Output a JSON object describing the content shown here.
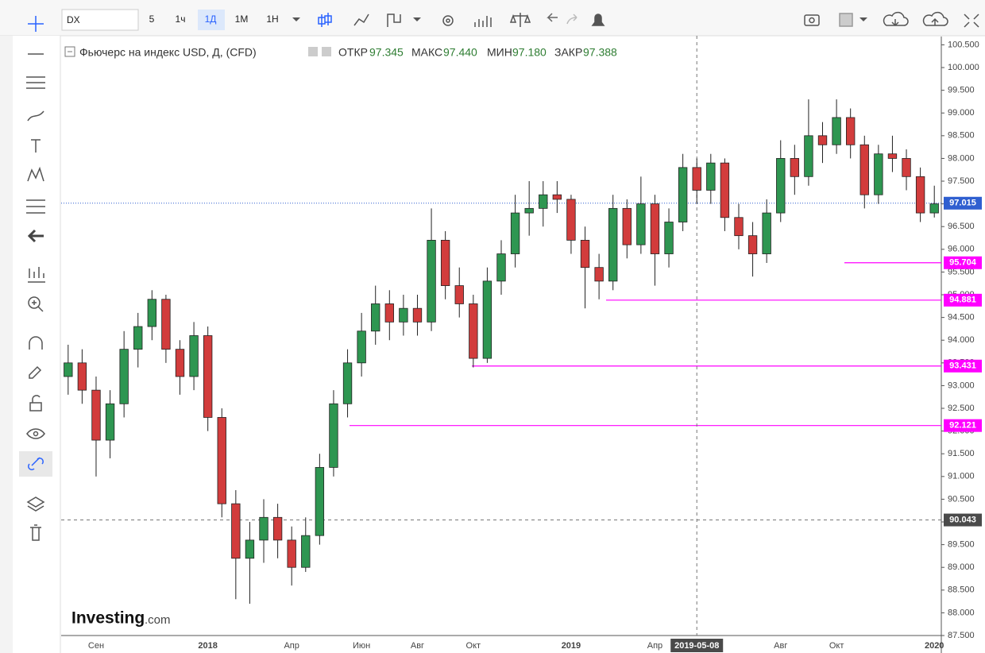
{
  "toolbar": {
    "symbol": "DX",
    "intervals": [
      "5",
      "1ч",
      "1Д",
      "1М",
      "1Н"
    ]
  },
  "legend": {
    "title": "Фьючерс на индекс USD, Д, (CFD)",
    "fields": [
      {
        "label": "ОТКР",
        "value": "97.345"
      },
      {
        "label": "МАКС",
        "value": "97.440"
      },
      {
        "label": "МИН",
        "value": "97.180"
      },
      {
        "label": "ЗАКР",
        "value": "97.388"
      }
    ]
  },
  "logo": {
    "name": "Investing",
    "suffix": ".com"
  },
  "chart_data": {
    "type": "candlestick",
    "categories": [
      null,
      null,
      "Сен",
      null,
      null,
      null,
      null,
      null,
      null,
      null,
      "2018",
      null,
      null,
      null,
      null,
      null,
      "Апр",
      null,
      null,
      null,
      null,
      "Июн",
      null,
      null,
      null,
      "Авг",
      null,
      null,
      null,
      "Окт",
      null,
      null,
      null,
      null,
      null,
      null,
      "2019",
      null,
      null,
      null,
      null,
      null,
      "Апр",
      null,
      null,
      null,
      null,
      null,
      null,
      null,
      null,
      "Авг",
      null,
      null,
      null,
      "Окт",
      null,
      null,
      null,
      null,
      null,
      null,
      "2020"
    ],
    "open": [
      93.2,
      93.5,
      92.9,
      91.8,
      92.6,
      93.8,
      94.3,
      94.9,
      93.8,
      93.2,
      94.1,
      92.3,
      90.4,
      89.2,
      89.6,
      90.1,
      89.6,
      89.0,
      89.7,
      91.2,
      92.6,
      93.5,
      94.2,
      94.8,
      94.4,
      94.7,
      94.4,
      96.2,
      95.2,
      94.8,
      93.6,
      95.3,
      95.9,
      96.8,
      96.9,
      97.2,
      97.1,
      96.2,
      95.6,
      95.3,
      96.9,
      96.1,
      97.0,
      95.9,
      96.6,
      97.8,
      97.3,
      97.9,
      96.7,
      96.3,
      95.9,
      96.8,
      98.0,
      97.6,
      98.5,
      98.3,
      98.9,
      98.3,
      97.2,
      98.1,
      98.0,
      97.6,
      96.8
    ],
    "high": [
      93.9,
      93.8,
      93.2,
      92.9,
      94.2,
      94.6,
      95.1,
      95.0,
      94.0,
      94.4,
      94.3,
      92.5,
      90.7,
      90.0,
      90.5,
      90.4,
      89.9,
      90.1,
      91.5,
      92.9,
      93.8,
      94.6,
      95.2,
      95.1,
      95.0,
      95.0,
      96.9,
      96.4,
      95.6,
      95.0,
      95.6,
      96.2,
      97.2,
      97.5,
      97.5,
      97.5,
      97.2,
      96.5,
      95.9,
      97.2,
      97.1,
      97.6,
      97.2,
      96.9,
      98.1,
      98.0,
      98.1,
      98.0,
      97.0,
      96.6,
      97.1,
      98.4,
      98.3,
      99.3,
      98.8,
      99.3,
      99.1,
      98.5,
      98.3,
      98.5,
      98.2,
      97.8,
      97.4
    ],
    "low": [
      92.8,
      92.6,
      91.0,
      91.4,
      92.3,
      93.4,
      94.0,
      93.5,
      92.8,
      92.9,
      92.0,
      90.1,
      88.3,
      88.2,
      89.1,
      89.2,
      88.6,
      88.9,
      89.5,
      91.0,
      92.3,
      93.2,
      93.9,
      94.0,
      94.1,
      94.1,
      94.2,
      94.9,
      94.5,
      93.4,
      93.5,
      95.0,
      95.6,
      96.3,
      96.5,
      96.8,
      95.9,
      94.7,
      94.9,
      95.1,
      95.8,
      95.9,
      95.2,
      95.6,
      96.4,
      97.0,
      97.0,
      96.4,
      96.0,
      95.4,
      95.7,
      96.6,
      97.2,
      97.4,
      97.9,
      98.1,
      98.0,
      96.9,
      97.0,
      97.7,
      97.3,
      96.6,
      96.7
    ],
    "close": [
      93.5,
      92.9,
      91.8,
      92.6,
      93.8,
      94.3,
      94.9,
      93.8,
      93.2,
      94.1,
      92.3,
      90.4,
      89.2,
      89.6,
      90.1,
      89.6,
      89.0,
      89.7,
      91.2,
      92.6,
      93.5,
      94.2,
      94.8,
      94.4,
      94.7,
      94.4,
      96.2,
      95.2,
      94.8,
      93.6,
      95.3,
      95.9,
      96.8,
      96.9,
      97.2,
      97.1,
      96.2,
      95.6,
      95.3,
      96.9,
      96.1,
      97.0,
      95.9,
      96.6,
      97.8,
      97.3,
      97.9,
      96.7,
      96.3,
      95.9,
      96.8,
      98.0,
      97.6,
      98.5,
      98.3,
      98.9,
      98.3,
      97.2,
      98.1,
      98.0,
      97.6,
      96.8,
      97.0
    ],
    "up_color": "#2e9651",
    "down_color": "#d23c3c",
    "ylim": [
      87.5,
      100.7
    ],
    "yticks": [
      {
        "value": 87.5,
        "label": "87.500"
      },
      {
        "value": 88,
        "label": "88.000"
      },
      {
        "value": 88.5,
        "label": "88.500"
      },
      {
        "value": 89,
        "label": "89.000"
      },
      {
        "value": 89.5,
        "label": "89.500"
      },
      {
        "value": 90,
        "label": "90.000"
      },
      {
        "value": 90.5,
        "label": "90.500"
      },
      {
        "value": 91,
        "label": "91.000"
      },
      {
        "value": 91.5,
        "label": "91.500"
      },
      {
        "value": 92,
        "label": "92.000"
      },
      {
        "value": 92.5,
        "label": "92.500"
      },
      {
        "value": 93,
        "label": "93.000"
      },
      {
        "value": 93.5,
        "label": "93.500"
      },
      {
        "value": 94,
        "label": "94.000"
      },
      {
        "value": 94.5,
        "label": "94.500"
      },
      {
        "value": 95,
        "label": "95.000"
      },
      {
        "value": 95.5,
        "label": "95.500"
      },
      {
        "value": 96,
        "label": "96.000"
      },
      {
        "value": 96.5,
        "label": "96.500"
      },
      {
        "value": 97,
        "label": "97.000"
      },
      {
        "value": 97.5,
        "label": "97.500"
      },
      {
        "value": 98,
        "label": "98.000"
      },
      {
        "value": 98.5,
        "label": "98.500"
      },
      {
        "value": 99,
        "label": "99.000"
      },
      {
        "value": 99.5,
        "label": "99.500"
      },
      {
        "value": 100,
        "label": "100.000"
      },
      {
        "value": 100.5,
        "label": "100.500"
      }
    ],
    "grid": false,
    "last_price": {
      "value": 97.015,
      "color": "#2f5fd0"
    },
    "crosshair": {
      "date": "2019-05-08",
      "price": 90.043
    },
    "levels": {
      "color": "#ff00ff",
      "values": [
        95.704,
        94.881,
        93.431,
        92.121
      ]
    }
  }
}
